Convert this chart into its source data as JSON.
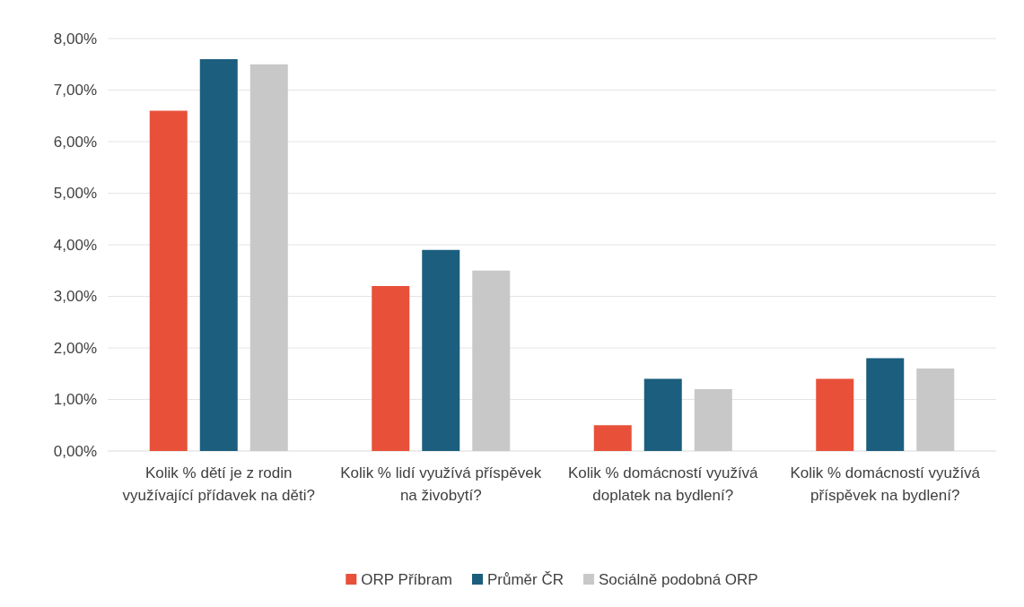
{
  "chart_data": {
    "type": "bar",
    "categories": [
      "Kolik % dětí je z rodin využívající přídavek na děti?",
      "Kolik % lidí využívá příspěvek na živobytí?",
      "Kolik % domácností využívá doplatek na bydlení?",
      "Kolik % domácností využívá příspěvek na bydlení?"
    ],
    "series": [
      {
        "name": "ORP Příbram",
        "color": "#e8503a",
        "values": [
          6.6,
          3.2,
          0.5,
          1.4
        ]
      },
      {
        "name": "Průměr ČR",
        "color": "#1b5e7e",
        "values": [
          7.6,
          3.9,
          1.4,
          1.8
        ]
      },
      {
        "name": "Sociálně podobná ORP",
        "color": "#c8c8c8",
        "values": [
          7.5,
          3.5,
          1.2,
          1.6
        ]
      }
    ],
    "ylim": [
      0,
      8
    ],
    "yticks": [
      {
        "value": 0,
        "label": "0,00%"
      },
      {
        "value": 1,
        "label": "1,00%"
      },
      {
        "value": 2,
        "label": "2,00%"
      },
      {
        "value": 3,
        "label": "3,00%"
      },
      {
        "value": 4,
        "label": "4,00%"
      },
      {
        "value": 5,
        "label": "5,00%"
      },
      {
        "value": 6,
        "label": "6,00%"
      },
      {
        "value": 7,
        "label": "7,00%"
      },
      {
        "value": 8,
        "label": "8,00%"
      }
    ],
    "grid": "y",
    "legend": "bottom"
  }
}
